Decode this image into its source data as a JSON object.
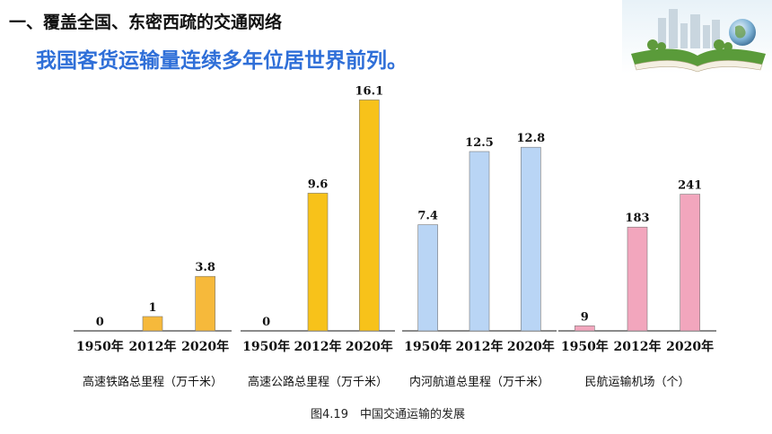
{
  "header": {
    "title": "一、覆盖全国、东密西疏的交通网络",
    "subtitle": "我国客货运输量连续多年位居世界前列。"
  },
  "decoration": {
    "icon": "book-city-globe-illustration"
  },
  "chart_data": {
    "type": "bar",
    "caption": "图4.19　中国交通运输的发展",
    "groups": [
      {
        "name": "高速铁路总里程（万千米）",
        "color": "#f6b93b",
        "categories": [
          "1950年",
          "2012年",
          "2020年"
        ],
        "values": [
          0,
          1,
          3.8
        ],
        "labels": [
          "0",
          "1",
          "3.8"
        ],
        "ylim": [
          0,
          17
        ]
      },
      {
        "name": "高速公路总里程（万千米）",
        "color": "#f7c21a",
        "categories": [
          "1950年",
          "2012年",
          "2020年"
        ],
        "values": [
          0,
          9.6,
          16.1
        ],
        "labels": [
          "0",
          "9.6",
          "16.1"
        ],
        "ylim": [
          0,
          17
        ]
      },
      {
        "name": "内河航道总里程（万千米）",
        "color": "#b9d5f5",
        "categories": [
          "1950年",
          "2012年",
          "2020年"
        ],
        "values": [
          7.4,
          12.5,
          12.8
        ],
        "labels": [
          "7.4",
          "12.5",
          "12.8"
        ],
        "ylim": [
          0,
          17
        ]
      },
      {
        "name": "民航运输机场（个）",
        "color": "#f2a6bd",
        "categories": [
          "1950年",
          "2012年",
          "2020年"
        ],
        "values": [
          9,
          183,
          241
        ],
        "labels": [
          "9",
          "183",
          "241"
        ],
        "ylim": [
          0,
          430
        ]
      }
    ]
  }
}
